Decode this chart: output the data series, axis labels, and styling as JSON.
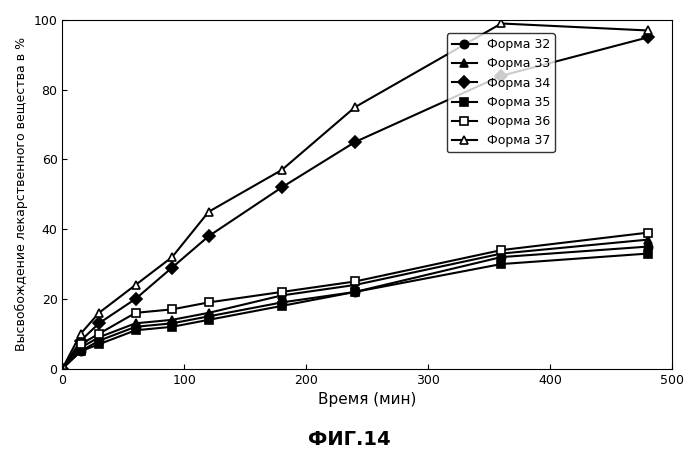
{
  "title": "ФИГ.14",
  "xlabel": "Время (мин)",
  "ylabel": "Высвобождение лекарственного вещества в %",
  "xlim": [
    0,
    500
  ],
  "ylim": [
    0,
    100
  ],
  "xticks": [
    0,
    100,
    200,
    300,
    400,
    500
  ],
  "yticks": [
    0,
    20,
    40,
    60,
    80,
    100
  ],
  "series": [
    {
      "label": "Форма 32",
      "marker": "o",
      "marker_fill": "black",
      "marker_edge": "black",
      "linestyle": "-",
      "color": "black",
      "x": [
        0,
        15,
        30,
        60,
        90,
        120,
        180,
        240,
        360,
        480
      ],
      "y": [
        0,
        5,
        8,
        12,
        13,
        15,
        19,
        22,
        32,
        35
      ]
    },
    {
      "label": "Форма 33",
      "marker": "^",
      "marker_fill": "black",
      "marker_edge": "black",
      "linestyle": "-",
      "color": "black",
      "x": [
        0,
        15,
        30,
        60,
        90,
        120,
        180,
        240,
        360,
        480
      ],
      "y": [
        0,
        6,
        9,
        13,
        14,
        16,
        21,
        24,
        33,
        37
      ]
    },
    {
      "label": "Форма 34",
      "marker": "D",
      "marker_fill": "black",
      "marker_edge": "black",
      "linestyle": "-",
      "color": "black",
      "x": [
        0,
        15,
        30,
        60,
        90,
        120,
        180,
        240,
        360,
        480
      ],
      "y": [
        0,
        8,
        13,
        20,
        29,
        38,
        52,
        65,
        84,
        95
      ]
    },
    {
      "label": "Форма 35",
      "marker": "s",
      "marker_fill": "black",
      "marker_edge": "black",
      "linestyle": "-",
      "color": "black",
      "x": [
        0,
        15,
        30,
        60,
        90,
        120,
        180,
        240,
        360,
        480
      ],
      "y": [
        0,
        5,
        7,
        11,
        12,
        14,
        18,
        22,
        30,
        33
      ]
    },
    {
      "label": "Форма 36",
      "marker": "s",
      "marker_fill": "white",
      "marker_edge": "black",
      "linestyle": "-",
      "color": "black",
      "x": [
        0,
        15,
        30,
        60,
        90,
        120,
        180,
        240,
        360,
        480
      ],
      "y": [
        0,
        7,
        10,
        16,
        17,
        19,
        22,
        25,
        34,
        39
      ]
    },
    {
      "label": "Форма 37",
      "marker": "^",
      "marker_fill": "white",
      "marker_edge": "black",
      "linestyle": "-",
      "color": "black",
      "x": [
        0,
        15,
        30,
        60,
        90,
        120,
        180,
        240,
        360,
        480
      ],
      "y": [
        0,
        10,
        16,
        24,
        32,
        45,
        57,
        75,
        99,
        97
      ]
    }
  ],
  "background_color": "#ffffff"
}
